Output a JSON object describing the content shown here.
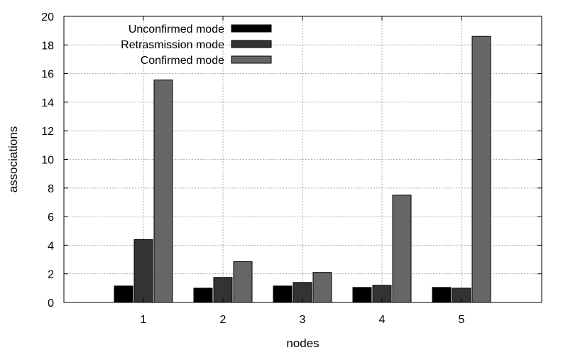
{
  "chart_data": {
    "type": "bar",
    "xlabel": "nodes",
    "ylabel": "associations",
    "categories": [
      "1",
      "2",
      "3",
      "4",
      "5"
    ],
    "ylim": [
      0,
      20
    ],
    "yticks": [
      0,
      2,
      4,
      6,
      8,
      10,
      12,
      14,
      16,
      18,
      20
    ],
    "grid": true,
    "legend_position": "top-left",
    "series": [
      {
        "name": "Unconfirmed mode",
        "color": "#000000",
        "values": [
          1.15,
          1.0,
          1.15,
          1.05,
          1.05
        ]
      },
      {
        "name": "Retrasmission mode",
        "color": "#333333",
        "values": [
          4.4,
          1.75,
          1.4,
          1.2,
          1.0
        ]
      },
      {
        "name": "Confirmed mode",
        "color": "#666666",
        "values": [
          15.55,
          2.85,
          2.1,
          7.5,
          18.6
        ]
      }
    ]
  }
}
